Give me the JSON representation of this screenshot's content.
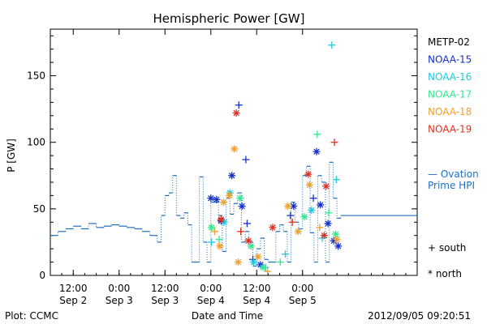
{
  "chart_data": {
    "type": "scatter",
    "title": "Hemispheric Power [GW]",
    "ylabel": "P [GW]",
    "xlabel": "Date and Time",
    "ylim": [
      0,
      185
    ],
    "y_ticks": [
      0,
      50,
      100,
      150
    ],
    "x_range": [
      "2012-09-02 06:00",
      "2012-09-06 06:00"
    ],
    "x_ticks": [
      {
        "time": "2012-09-02 12:00",
        "line1": "12:00",
        "line2": "Sep 2"
      },
      {
        "time": "2012-09-03 00:00",
        "line1": "0:00",
        "line2": "Sep 3"
      },
      {
        "time": "2012-09-03 12:00",
        "line1": "12:00",
        "line2": "Sep 3"
      },
      {
        "time": "2012-09-04 00:00",
        "line1": "0:00",
        "line2": "Sep 4"
      },
      {
        "time": "2012-09-04 12:00",
        "line1": "12:00",
        "line2": "Sep 4"
      },
      {
        "time": "2012-09-05 00:00",
        "line1": "0:00",
        "line2": "Sep 5"
      }
    ],
    "legend": {
      "placement": "right",
      "satellites": [
        {
          "name": "METP-02",
          "color": "#000000"
        },
        {
          "name": "NOAA-15",
          "color": "#1530c8"
        },
        {
          "name": "NOAA-16",
          "color": "#20c8dc"
        },
        {
          "name": "NOAA-17",
          "color": "#30e890"
        },
        {
          "name": "NOAA-18",
          "color": "#f0a030"
        },
        {
          "name": "NOAA-19",
          "color": "#e03020"
        }
      ],
      "model_label_1": "— Ovation",
      "model_label_2": "Prime HPI",
      "model_color": "#1f6fc0",
      "south_label": "+ south",
      "north_label": "* north"
    },
    "ovation_series": {
      "name": "Ovation Prime HPI",
      "color": "#1f6fc0",
      "values": [
        [
          "2012-09-02 06:00",
          30
        ],
        [
          "2012-09-02 08:00",
          33
        ],
        [
          "2012-09-02 10:00",
          35
        ],
        [
          "2012-09-02 12:00",
          37
        ],
        [
          "2012-09-02 14:00",
          35
        ],
        [
          "2012-09-02 16:00",
          39
        ],
        [
          "2012-09-02 18:00",
          36
        ],
        [
          "2012-09-02 20:00",
          37
        ],
        [
          "2012-09-02 22:00",
          38
        ],
        [
          "2012-09-03 00:00",
          37
        ],
        [
          "2012-09-03 02:00",
          36
        ],
        [
          "2012-09-03 04:00",
          35
        ],
        [
          "2012-09-03 06:00",
          33
        ],
        [
          "2012-09-03 08:00",
          30
        ],
        [
          "2012-09-03 10:00",
          25
        ],
        [
          "2012-09-03 11:00",
          45
        ],
        [
          "2012-09-03 12:00",
          60
        ],
        [
          "2012-09-03 13:00",
          62
        ],
        [
          "2012-09-03 14:00",
          75
        ],
        [
          "2012-09-03 15:00",
          45
        ],
        [
          "2012-09-03 16:00",
          43
        ],
        [
          "2012-09-03 17:00",
          47
        ],
        [
          "2012-09-03 18:00",
          38
        ],
        [
          "2012-09-03 19:00",
          10
        ],
        [
          "2012-09-03 21:00",
          74
        ],
        [
          "2012-09-03 22:00",
          25
        ],
        [
          "2012-09-03 23:00",
          10
        ],
        [
          "2012-09-04 00:00",
          55
        ],
        [
          "2012-09-04 02:00",
          45
        ],
        [
          "2012-09-04 03:00",
          18
        ],
        [
          "2012-09-04 04:00",
          58
        ],
        [
          "2012-09-04 05:00",
          46
        ],
        [
          "2012-09-04 06:00",
          54
        ],
        [
          "2012-09-04 07:00",
          62
        ],
        [
          "2012-09-04 08:00",
          25
        ],
        [
          "2012-09-04 09:00",
          33
        ],
        [
          "2012-09-04 10:00",
          25
        ],
        [
          "2012-09-04 11:00",
          7
        ],
        [
          "2012-09-04 12:00",
          20
        ],
        [
          "2012-09-04 13:00",
          28
        ],
        [
          "2012-09-04 14:00",
          12
        ],
        [
          "2012-09-04 15:00",
          10
        ],
        [
          "2012-09-04 17:00",
          33
        ],
        [
          "2012-09-04 18:00",
          38
        ],
        [
          "2012-09-04 19:00",
          33
        ],
        [
          "2012-09-04 20:00",
          10
        ],
        [
          "2012-09-04 21:00",
          55
        ],
        [
          "2012-09-04 22:00",
          40
        ],
        [
          "2012-09-04 23:00",
          35
        ],
        [
          "2012-09-05 00:00",
          75
        ],
        [
          "2012-09-05 01:00",
          82
        ],
        [
          "2012-09-05 02:00",
          32
        ],
        [
          "2012-09-05 03:00",
          10
        ],
        [
          "2012-09-05 04:00",
          75
        ],
        [
          "2012-09-05 05:00",
          70
        ],
        [
          "2012-09-05 06:00",
          10
        ],
        [
          "2012-09-05 07:00",
          85
        ],
        [
          "2012-09-05 08:00",
          58
        ],
        [
          "2012-09-05 09:00",
          43
        ],
        [
          "2012-09-05 10:00",
          45
        ]
      ]
    },
    "observations": [
      {
        "sat": "NOAA-15",
        "hemi": "south",
        "time": "2012-09-04 07:20",
        "value": 128
      },
      {
        "sat": "NOAA-15",
        "hemi": "north",
        "time": "2012-09-04 05:30",
        "value": 75
      },
      {
        "sat": "NOAA-15",
        "hemi": "south",
        "time": "2012-09-04 09:10",
        "value": 87
      },
      {
        "sat": "NOAA-15",
        "hemi": "north",
        "time": "2012-09-04 00:00",
        "value": 58
      },
      {
        "sat": "NOAA-15",
        "hemi": "north",
        "time": "2012-09-04 01:30",
        "value": 57
      },
      {
        "sat": "NOAA-15",
        "hemi": "north",
        "time": "2012-09-04 08:10",
        "value": 52
      },
      {
        "sat": "NOAA-15",
        "hemi": "north",
        "time": "2012-09-04 02:40",
        "value": 41
      },
      {
        "sat": "NOAA-15",
        "hemi": "south",
        "time": "2012-09-04 09:30",
        "value": 39
      },
      {
        "sat": "NOAA-15",
        "hemi": "north",
        "time": "2012-09-04 21:40",
        "value": 52
      },
      {
        "sat": "NOAA-15",
        "hemi": "south",
        "time": "2012-09-04 20:50",
        "value": 45
      },
      {
        "sat": "NOAA-15",
        "hemi": "north",
        "time": "2012-09-05 03:40",
        "value": 93
      },
      {
        "sat": "NOAA-15",
        "hemi": "south",
        "time": "2012-09-05 02:50",
        "value": 58
      },
      {
        "sat": "NOAA-15",
        "hemi": "north",
        "time": "2012-09-05 04:40",
        "value": 53
      },
      {
        "sat": "NOAA-15",
        "hemi": "north",
        "time": "2012-09-05 06:40",
        "value": 39
      },
      {
        "sat": "NOAA-15",
        "hemi": "north",
        "time": "2012-09-05 08:10",
        "value": 26
      },
      {
        "sat": "NOAA-15",
        "hemi": "north",
        "time": "2012-09-05 09:20",
        "value": 22
      },
      {
        "sat": "NOAA-15",
        "hemi": "south",
        "time": "2012-09-04 11:00",
        "value": 12
      },
      {
        "sat": "NOAA-15",
        "hemi": "north",
        "time": "2012-09-04 13:00",
        "value": 8
      },
      {
        "sat": "NOAA-16",
        "hemi": "south",
        "time": "2012-09-05 07:40",
        "value": 173
      },
      {
        "sat": "NOAA-16",
        "hemi": "south",
        "time": "2012-09-05 08:50",
        "value": 72
      },
      {
        "sat": "NOAA-16",
        "hemi": "north",
        "time": "2012-09-04 05:00",
        "value": 62
      },
      {
        "sat": "NOAA-16",
        "hemi": "north",
        "time": "2012-09-04 03:30",
        "value": 40
      },
      {
        "sat": "NOAA-16",
        "hemi": "south",
        "time": "2012-09-04 00:10",
        "value": 25
      },
      {
        "sat": "NOAA-16",
        "hemi": "north",
        "time": "2012-09-04 11:10",
        "value": 10
      },
      {
        "sat": "NOAA-16",
        "hemi": "south",
        "time": "2012-09-04 14:20",
        "value": 6
      },
      {
        "sat": "NOAA-16",
        "hemi": "south",
        "time": "2012-09-04 19:30",
        "value": 16
      },
      {
        "sat": "NOAA-16",
        "hemi": "north",
        "time": "2012-09-05 02:20",
        "value": 49
      },
      {
        "sat": "NOAA-16",
        "hemi": "south",
        "time": "2012-09-05 05:10",
        "value": 28
      },
      {
        "sat": "NOAA-17",
        "hemi": "south",
        "time": "2012-09-05 03:50",
        "value": 106
      },
      {
        "sat": "NOAA-17",
        "hemi": "north",
        "time": "2012-09-04 07:40",
        "value": 58
      },
      {
        "sat": "NOAA-17",
        "hemi": "north",
        "time": "2012-09-04 00:10",
        "value": 36
      },
      {
        "sat": "NOAA-17",
        "hemi": "south",
        "time": "2012-09-04 02:10",
        "value": 27
      },
      {
        "sat": "NOAA-17",
        "hemi": "north",
        "time": "2012-09-04 10:30",
        "value": 22
      },
      {
        "sat": "NOAA-17",
        "hemi": "north",
        "time": "2012-09-04 13:40",
        "value": 6
      },
      {
        "sat": "NOAA-17",
        "hemi": "south",
        "time": "2012-09-04 18:10",
        "value": 10
      },
      {
        "sat": "NOAA-17",
        "hemi": "north",
        "time": "2012-09-05 00:30",
        "value": 44
      },
      {
        "sat": "NOAA-17",
        "hemi": "south",
        "time": "2012-09-05 06:50",
        "value": 47
      },
      {
        "sat": "NOAA-17",
        "hemi": "north",
        "time": "2012-09-05 08:40",
        "value": 31
      },
      {
        "sat": "NOAA-18",
        "hemi": "north",
        "time": "2012-09-04 06:10",
        "value": 95
      },
      {
        "sat": "NOAA-18",
        "hemi": "north",
        "time": "2012-09-04 04:50",
        "value": 60
      },
      {
        "sat": "NOAA-18",
        "hemi": "north",
        "time": "2012-09-04 03:20",
        "value": 55
      },
      {
        "sat": "NOAA-18",
        "hemi": "south",
        "time": "2012-09-04 01:00",
        "value": 33
      },
      {
        "sat": "NOAA-18",
        "hemi": "north",
        "time": "2012-09-04 02:20",
        "value": 22
      },
      {
        "sat": "NOAA-18",
        "hemi": "north",
        "time": "2012-09-04 07:10",
        "value": 10
      },
      {
        "sat": "NOAA-18",
        "hemi": "north",
        "time": "2012-09-04 12:20",
        "value": 14
      },
      {
        "sat": "NOAA-18",
        "hemi": "south",
        "time": "2012-09-04 14:50",
        "value": 3
      },
      {
        "sat": "NOAA-18",
        "hemi": "north",
        "time": "2012-09-04 20:10",
        "value": 52
      },
      {
        "sat": "NOAA-18",
        "hemi": "north",
        "time": "2012-09-04 22:50",
        "value": 33
      },
      {
        "sat": "NOAA-18",
        "hemi": "north",
        "time": "2012-09-05 01:50",
        "value": 68
      },
      {
        "sat": "NOAA-18",
        "hemi": "south",
        "time": "2012-09-05 04:30",
        "value": 36
      },
      {
        "sat": "NOAA-18",
        "hemi": "north",
        "time": "2012-09-05 09:00",
        "value": 27
      },
      {
        "sat": "NOAA-19",
        "hemi": "north",
        "time": "2012-09-04 06:40",
        "value": 122
      },
      {
        "sat": "NOAA-19",
        "hemi": "south",
        "time": "2012-09-05 08:20",
        "value": 100
      },
      {
        "sat": "NOAA-19",
        "hemi": "north",
        "time": "2012-09-05 01:30",
        "value": 76
      },
      {
        "sat": "NOAA-19",
        "hemi": "north",
        "time": "2012-09-05 06:10",
        "value": 67
      },
      {
        "sat": "NOAA-19",
        "hemi": "north",
        "time": "2012-09-04 02:40",
        "value": 42
      },
      {
        "sat": "NOAA-19",
        "hemi": "south",
        "time": "2012-09-04 07:50",
        "value": 33
      },
      {
        "sat": "NOAA-19",
        "hemi": "north",
        "time": "2012-09-04 09:50",
        "value": 26
      },
      {
        "sat": "NOAA-19",
        "hemi": "north",
        "time": "2012-09-04 16:10",
        "value": 36
      },
      {
        "sat": "NOAA-19",
        "hemi": "south",
        "time": "2012-09-04 21:20",
        "value": 40
      },
      {
        "sat": "NOAA-19",
        "hemi": "north",
        "time": "2012-09-05 05:40",
        "value": 30
      }
    ]
  },
  "footer": {
    "plot_credit": "Plot: CCMC",
    "timestamp": "2012/09/05 09:20:51"
  }
}
